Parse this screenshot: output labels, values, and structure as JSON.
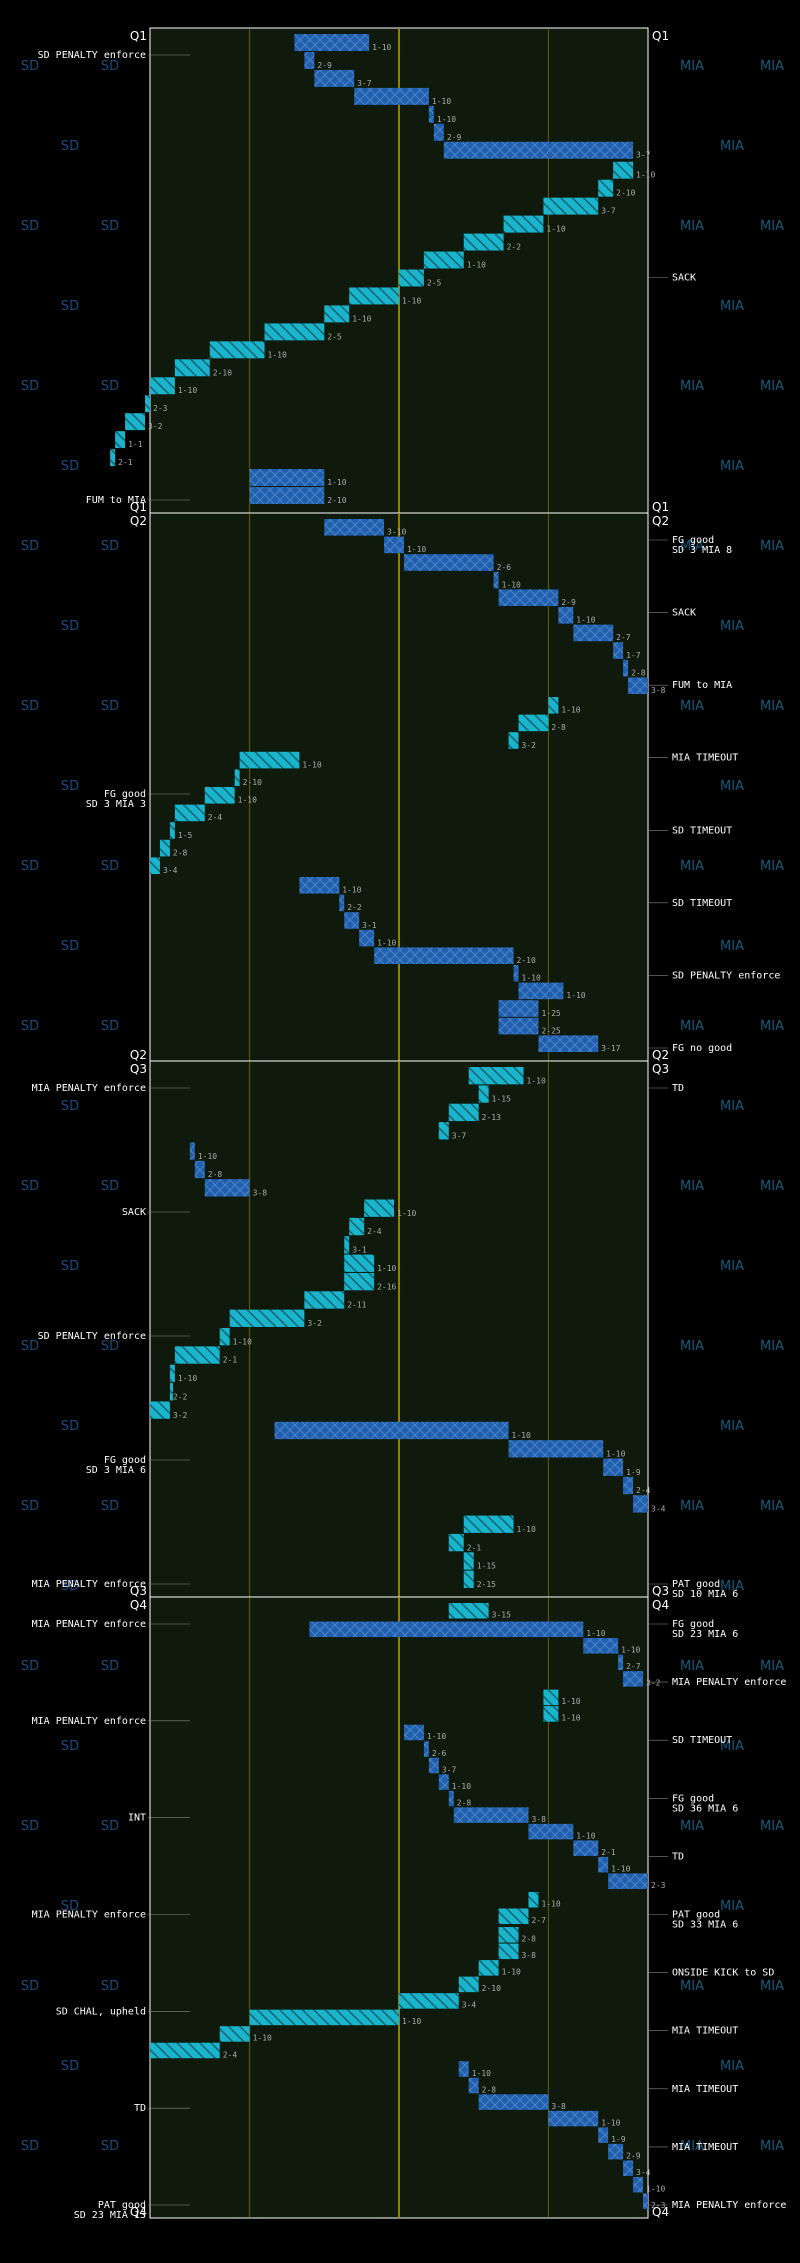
{
  "teams": {
    "left": "SD",
    "right": "MIA"
  },
  "colors": {
    "background": "#000000",
    "field": "#0f1a0c",
    "sd": "#1ab4cc",
    "mia": "#1f5fb0",
    "score_red": "#ff0000",
    "gold": "#a08c00",
    "watermark_sd": "#1e4a80",
    "watermark_mia": "#1a5a7a"
  },
  "chart_data": {
    "type": "drive-chart",
    "xlim": [
      0,
      100
    ],
    "quarters": [
      {
        "label": "Q1",
        "ylim": [
          0,
          100
        ],
        "drives": [
          {
            "team": "MIA",
            "plays": [
              {
                "d": "1-10",
                "y0": 29,
                "y1": 44
              },
              {
                "d": "2-9",
                "y0": 31,
                "y1": 33
              },
              {
                "d": "3-7",
                "y0": 33,
                "y1": 41
              },
              {
                "d": "1-10",
                "y0": 41,
                "y1": 56
              },
              {
                "d": "1-10",
                "y0": 56,
                "y1": 57
              },
              {
                "d": "2-9",
                "y0": 57,
                "y1": 59
              },
              {
                "d": "3-7",
                "y0": 59,
                "y1": 97
              }
            ]
          },
          {
            "team": "SD",
            "plays": [
              {
                "d": "1-10",
                "y0": 97,
                "y1": 93
              },
              {
                "d": "2-10",
                "y0": 93,
                "y1": 90
              },
              {
                "d": "3-7",
                "y0": 90,
                "y1": 79
              },
              {
                "d": "1-10",
                "y0": 79,
                "y1": 71
              },
              {
                "d": "2-2",
                "y0": 71,
                "y1": 63
              },
              {
                "d": "1-10",
                "y0": 63,
                "y1": 55
              },
              {
                "d": "2-5",
                "y0": 55,
                "y1": 50
              },
              {
                "d": "1-10",
                "y0": 50,
                "y1": 40
              },
              {
                "d": "1-10",
                "y0": 40,
                "y1": 35
              },
              {
                "d": "2-5",
                "y0": 35,
                "y1": 23
              },
              {
                "d": "1-10",
                "y0": 23,
                "y1": 12
              },
              {
                "d": "2-10",
                "y0": 12,
                "y1": 5
              },
              {
                "d": "1-10",
                "y0": 5,
                "y1": 0
              },
              {
                "d": "2-3",
                "y0": 0,
                "y1": -1
              },
              {
                "d": "3-2",
                "y0": -1,
                "y1": -5
              },
              {
                "d": "1-1",
                "y0": -5,
                "y1": -7
              },
              {
                "d": "2-1",
                "y0": -7,
                "y1": -8
              }
            ]
          },
          {
            "team": "MIA",
            "plays": [
              {
                "d": "1-10",
                "y0": 20,
                "y1": 35
              },
              {
                "d": "2-10",
                "y0": 20,
                "y1": 35
              }
            ]
          }
        ],
        "events": [
          {
            "side": "left",
            "text": "SD PENALTY enforce"
          },
          {
            "side": "left",
            "text": "FUM to MIA"
          },
          {
            "side": "right",
            "text": "SACK"
          }
        ]
      },
      {
        "label": "Q2",
        "ylim": [
          0,
          100
        ],
        "drives": [
          {
            "team": "MIA",
            "plays": [
              {
                "d": "3-10",
                "y0": 35,
                "y1": 47
              },
              {
                "d": "1-10",
                "y0": 47,
                "y1": 51
              },
              {
                "d": "2-6",
                "y0": 51,
                "y1": 69
              },
              {
                "d": "1-10",
                "y0": 69,
                "y1": 70
              },
              {
                "d": "2-9",
                "y0": 70,
                "y1": 82
              },
              {
                "d": "1-10",
                "y0": 82,
                "y1": 85
              },
              {
                "d": "2-7",
                "y0": 85,
                "y1": 93
              },
              {
                "d": "1-7",
                "y0": 93,
                "y1": 95
              },
              {
                "d": "2-8",
                "y0": 95,
                "y1": 96
              },
              {
                "d": "3-8",
                "y0": 96,
                "y1": 100
              }
            ]
          },
          {
            "team": "SD",
            "plays": [
              {
                "d": "1-10",
                "y0": 82,
                "y1": 80
              },
              {
                "d": "2-8",
                "y0": 80,
                "y1": 74
              },
              {
                "d": "3-2",
                "y0": 74,
                "y1": 72
              }
            ]
          },
          {
            "team": "SD",
            "plays": [
              {
                "d": "1-10",
                "y0": 30,
                "y1": 18
              },
              {
                "d": "2-10",
                "y0": 18,
                "y1": 17
              },
              {
                "d": "1-10",
                "y0": 17,
                "y1": 11
              },
              {
                "d": "2-4",
                "y0": 11,
                "y1": 5
              },
              {
                "d": "1-5",
                "y0": 5,
                "y1": 4
              },
              {
                "d": "2-8",
                "y0": 4,
                "y1": 2
              },
              {
                "d": "3-4",
                "y0": 2,
                "y1": 0
              }
            ]
          },
          {
            "team": "MIA",
            "plays": [
              {
                "d": "1-10",
                "y0": 30,
                "y1": 38
              },
              {
                "d": "2-2",
                "y0": 38,
                "y1": 39
              },
              {
                "d": "3-1",
                "y0": 39,
                "y1": 42
              },
              {
                "d": "1-10",
                "y0": 42,
                "y1": 45
              },
              {
                "d": "2-10",
                "y0": 45,
                "y1": 73
              },
              {
                "d": "1-10",
                "y0": 73,
                "y1": 74
              },
              {
                "d": "1-10",
                "y0": 74,
                "y1": 83
              },
              {
                "d": "1-25",
                "y0": 70,
                "y1": 78
              },
              {
                "d": "2-25",
                "y0": 70,
                "y1": 78
              },
              {
                "d": "3-17",
                "y0": 78,
                "y1": 90
              }
            ]
          }
        ],
        "events": [
          {
            "side": "right",
            "text": "FG good",
            "score": "SD 3 MIA 8"
          },
          {
            "side": "right",
            "text": "SACK"
          },
          {
            "side": "right",
            "text": "FUM to MIA"
          },
          {
            "side": "left",
            "text": "FG good",
            "score": "SD 3 MIA 3"
          },
          {
            "side": "right",
            "text": "MIA TIMEOUT"
          },
          {
            "side": "right",
            "text": "SD TIMEOUT"
          },
          {
            "side": "right",
            "text": "SD TIMEOUT"
          },
          {
            "side": "right",
            "text": "SD PENALTY enforce"
          },
          {
            "side": "right",
            "text": "FG no good"
          }
        ]
      },
      {
        "label": "Q3",
        "ylim": [
          0,
          100
        ],
        "drives": [
          {
            "team": "SD",
            "plays": [
              {
                "d": "1-10",
                "y0": 75,
                "y1": 64
              },
              {
                "d": "1-15",
                "y0": 68,
                "y1": 66
              },
              {
                "d": "2-13",
                "y0": 66,
                "y1": 60
              },
              {
                "d": "3-7",
                "y0": 60,
                "y1": 58
              }
            ]
          },
          {
            "team": "MIA",
            "plays": [
              {
                "d": "1-10",
                "y0": 8,
                "y1": 9
              },
              {
                "d": "2-8",
                "y0": 9,
                "y1": 11
              },
              {
                "d": "3-8",
                "y0": 11,
                "y1": 20
              }
            ]
          },
          {
            "team": "SD",
            "plays": [
              {
                "d": "1-10",
                "y0": 49,
                "y1": 43
              },
              {
                "d": "2-4",
                "y0": 43,
                "y1": 40
              },
              {
                "d": "3-1",
                "y0": 40,
                "y1": 39
              },
              {
                "d": "1-10",
                "y0": 39,
                "y1": 45
              },
              {
                "d": "2-16",
                "y0": 45,
                "y1": 39
              },
              {
                "d": "2-11",
                "y0": 39,
                "y1": 31
              },
              {
                "d": "3-2",
                "y0": 31,
                "y1": 16
              },
              {
                "d": "1-10",
                "y0": 16,
                "y1": 14
              },
              {
                "d": "2-1",
                "y0": 14,
                "y1": 5
              },
              {
                "d": "1-10",
                "y0": 5,
                "y1": 4
              },
              {
                "d": "2-2",
                "y0": 4,
                "y1": 4
              },
              {
                "d": "3-2",
                "y0": 4,
                "y1": 0
              }
            ]
          },
          {
            "team": "MIA",
            "plays": [
              {
                "d": "1-10",
                "y0": 25,
                "y1": 72
              },
              {
                "d": "1-10",
                "y0": 72,
                "y1": 91
              },
              {
                "d": "1-9",
                "y0": 91,
                "y1": 95
              },
              {
                "d": "2-4",
                "y0": 95,
                "y1": 97
              },
              {
                "d": "3-4",
                "y0": 97,
                "y1": 100
              }
            ]
          },
          {
            "team": "SD",
            "plays": [
              {
                "d": "1-10",
                "y0": 73,
                "y1": 63
              },
              {
                "d": "2-1",
                "y0": 63,
                "y1": 60
              },
              {
                "d": "1-15",
                "y0": 65,
                "y1": 63
              },
              {
                "d": "2-15",
                "y0": 65,
                "y1": 63
              }
            ]
          }
        ],
        "events": [
          {
            "side": "left",
            "text": "MIA PENALTY enforce"
          },
          {
            "side": "left",
            "text": "SACK"
          },
          {
            "side": "left",
            "text": "SD PENALTY enforce"
          },
          {
            "side": "left",
            "text": "FG good",
            "score": "SD 3 MIA 6"
          },
          {
            "side": "right",
            "text": "TD"
          },
          {
            "side": "right",
            "text": "PAT good",
            "score": "SD 10 MIA 6"
          },
          {
            "side": "left",
            "text": "MIA PENALTY enforce"
          }
        ]
      },
      {
        "label": "Q4",
        "ylim": [
          0,
          100
        ],
        "drives": [
          {
            "team": "SD",
            "plays": [
              {
                "d": "3-15",
                "y0": 68,
                "y1": 60
              }
            ]
          },
          {
            "team": "MIA",
            "plays": [
              {
                "d": "1-10",
                "y0": 32,
                "y1": 87
              },
              {
                "d": "1-10",
                "y0": 87,
                "y1": 94
              },
              {
                "d": "2-7",
                "y0": 94,
                "y1": 95
              },
              {
                "d": "3-2",
                "y0": 95,
                "y1": 99
              }
            ]
          },
          {
            "team": "SD",
            "plays": [
              {
                "d": "1-10",
                "y0": 82,
                "y1": 79
              },
              {
                "d": "1-10",
                "y0": 82,
                "y1": 79
              }
            ]
          },
          {
            "team": "MIA",
            "plays": [
              {
                "d": "1-10",
                "y0": 51,
                "y1": 55
              },
              {
                "d": "2-6",
                "y0": 55,
                "y1": 56
              },
              {
                "d": "3-7",
                "y0": 56,
                "y1": 58
              },
              {
                "d": "1-10",
                "y0": 58,
                "y1": 60
              },
              {
                "d": "2-8",
                "y0": 60,
                "y1": 61
              },
              {
                "d": "3-8",
                "y0": 61,
                "y1": 76
              },
              {
                "d": "1-10",
                "y0": 76,
                "y1": 85
              },
              {
                "d": "2-1",
                "y0": 85,
                "y1": 90
              },
              {
                "d": "1-10",
                "y0": 90,
                "y1": 92
              },
              {
                "d": "2-3",
                "y0": 92,
                "y1": 100
              }
            ]
          },
          {
            "team": "SD",
            "plays": [
              {
                "d": "1-10",
                "y0": 78,
                "y1": 76
              },
              {
                "d": "2-7",
                "y0": 76,
                "y1": 70
              }
            ]
          },
          {
            "team": "SD",
            "plays": [
              {
                "d": "2-8",
                "y0": 74,
                "y1": 70
              },
              {
                "d": "3-8",
                "y0": 74,
                "y1": 70
              },
              {
                "d": "1-10",
                "y0": 70,
                "y1": 66
              },
              {
                "d": "2-10",
                "y0": 66,
                "y1": 62
              },
              {
                "d": "3-4",
                "y0": 62,
                "y1": 50
              },
              {
                "d": "1-10",
                "y0": 50,
                "y1": 20
              },
              {
                "d": "1-10",
                "y0": 20,
                "y1": 14
              },
              {
                "d": "2-4",
                "y0": 14,
                "y1": 0
              }
            ]
          },
          {
            "team": "MIA",
            "plays": [
              {
                "d": "1-10",
                "y0": 62,
                "y1": 64
              },
              {
                "d": "2-8",
                "y0": 64,
                "y1": 66
              },
              {
                "d": "3-8",
                "y0": 66,
                "y1": 80
              },
              {
                "d": "1-10",
                "y0": 80,
                "y1": 90
              },
              {
                "d": "1-9",
                "y0": 90,
                "y1": 92
              },
              {
                "d": "2-9",
                "y0": 92,
                "y1": 95
              },
              {
                "d": "3-4",
                "y0": 95,
                "y1": 97
              },
              {
                "d": "1-10",
                "y0": 97,
                "y1": 99
              },
              {
                "d": "2-3",
                "y0": 99,
                "y1": 100
              }
            ]
          }
        ],
        "events": [
          {
            "side": "left",
            "text": "MIA PENALTY enforce"
          },
          {
            "side": "right",
            "text": "FG good",
            "score": "SD 23 MIA 6"
          },
          {
            "side": "left",
            "text": "MIA PENALTY enforce"
          },
          {
            "side": "right",
            "text": "MIA PENALTY enforce"
          },
          {
            "side": "right",
            "text": "SD TIMEOUT"
          },
          {
            "side": "right",
            "text": "FG good",
            "score": "SD 36 MIA 6"
          },
          {
            "side": "left",
            "text": "INT"
          },
          {
            "side": "right",
            "text": "TD"
          },
          {
            "side": "right",
            "text": "PAT good",
            "score": "SD 33 MIA 6"
          },
          {
            "side": "left",
            "text": "MIA PENALTY enforce"
          },
          {
            "side": "left",
            "text": "SD CHAL, upheld"
          },
          {
            "side": "left",
            "text": "TD"
          },
          {
            "side": "left",
            "text": "PAT good",
            "score": "SD 23 MIA 13"
          },
          {
            "side": "right",
            "text": "ONSIDE KICK to SD"
          },
          {
            "side": "right",
            "text": "MIA TIMEOUT"
          },
          {
            "side": "right",
            "text": "MIA TIMEOUT"
          },
          {
            "side": "right",
            "text": "MIA TIMEOUT"
          },
          {
            "side": "right",
            "text": "MIA PENALTY enforce"
          }
        ]
      }
    ]
  }
}
